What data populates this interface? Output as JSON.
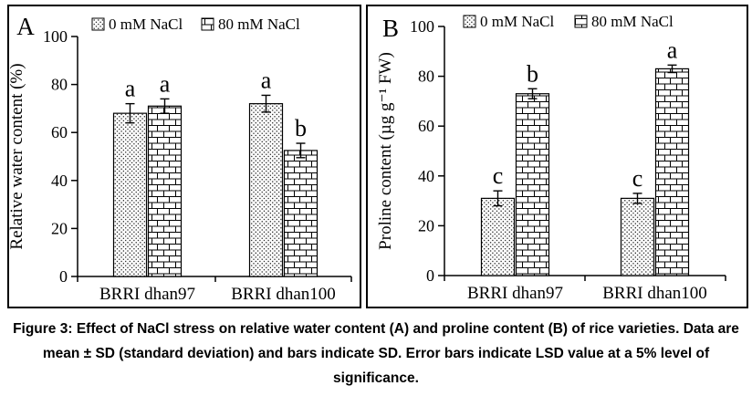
{
  "figure": {
    "caption": "Figure 3: Effect of NaCl stress on relative water content (A) and proline content (B) of rice varieties. Data are mean ± SD (standard deviation) and bars indicate SD. Error bars indicate LSD value at a 5% level of significance."
  },
  "colors": {
    "ink": "#000000",
    "background": "#ffffff"
  },
  "chart_data": [
    {
      "type": "bar",
      "panel_label": "A",
      "title": "",
      "ylabel": "Relative water content (%)",
      "xlabel": "",
      "ylim": [
        0,
        100
      ],
      "yticks": [
        0,
        20,
        40,
        60,
        80,
        100
      ],
      "grid": false,
      "legend_position": "top",
      "categories": [
        "BRRI dhan97",
        "BRRI dhan100"
      ],
      "series": [
        {
          "name": "0 mM NaCl",
          "pattern": "dots",
          "values": [
            68,
            72
          ],
          "errors": [
            4,
            3.5
          ],
          "letters": [
            "a",
            "a"
          ]
        },
        {
          "name": "80 mM NaCl",
          "pattern": "bricks",
          "values": [
            71,
            52.5
          ],
          "errors": [
            3,
            3
          ],
          "letters": [
            "a",
            "b"
          ]
        }
      ]
    },
    {
      "type": "bar",
      "panel_label": "B",
      "title": "",
      "ylabel": "Proline content (µg g⁻¹ FW)",
      "xlabel": "",
      "ylim": [
        0,
        100
      ],
      "yticks": [
        0,
        20,
        40,
        60,
        80,
        100
      ],
      "grid": false,
      "legend_position": "top",
      "categories": [
        "BRRI dhan97",
        "BRRI dhan100"
      ],
      "series": [
        {
          "name": "0 mM NaCl",
          "pattern": "dots",
          "values": [
            31,
            31
          ],
          "errors": [
            3,
            2
          ],
          "letters": [
            "c",
            "c"
          ]
        },
        {
          "name": "80 mM NaCl",
          "pattern": "bricks",
          "values": [
            73,
            83
          ],
          "errors": [
            2,
            1.5
          ],
          "letters": [
            "b",
            "a"
          ]
        }
      ]
    }
  ]
}
